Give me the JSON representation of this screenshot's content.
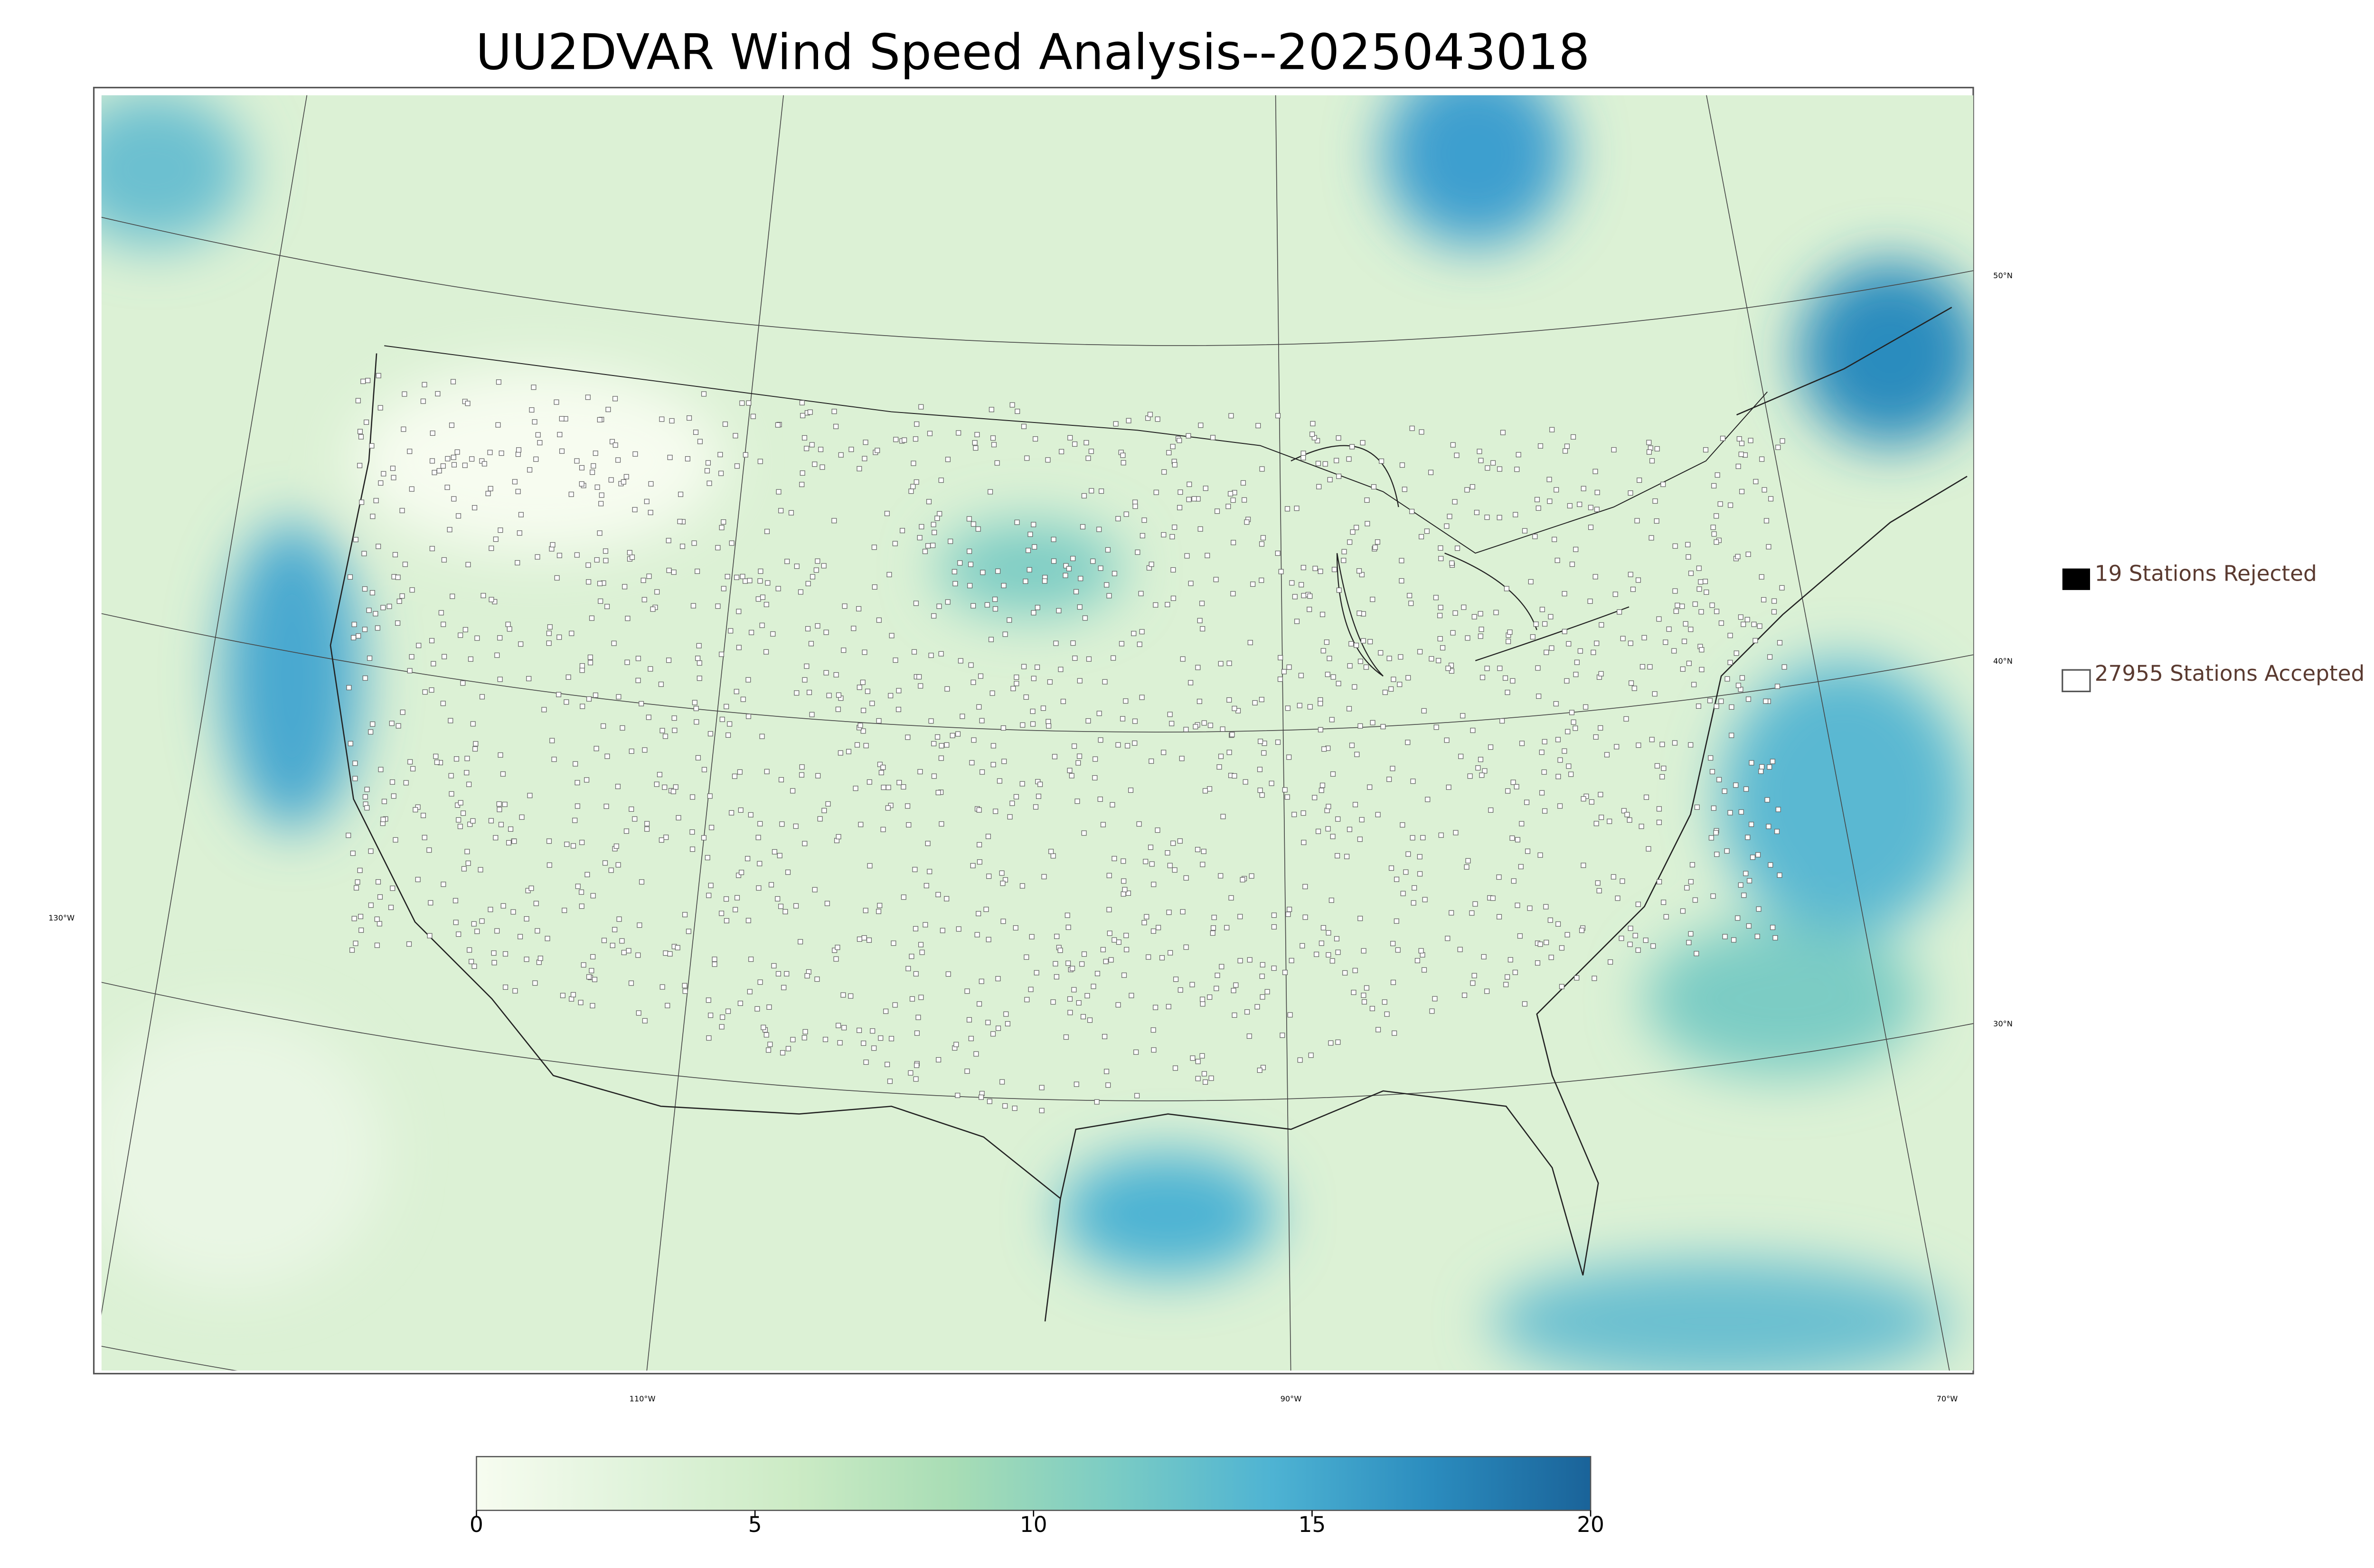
{
  "map": {
    "title": "UU2DVAR Wind Speed Analysis--2025043018",
    "latitude_labels": [
      "50°N",
      "40°N",
      "30°N"
    ],
    "longitude_labels": [
      "130°W",
      "110°W",
      "90°W",
      "70°W"
    ],
    "legend": {
      "rejected": "19 Stations Rejected",
      "accepted": "27955 Stations Accepted"
    },
    "colorbar": {
      "lim": [
        0,
        20
      ],
      "ticks": [
        0,
        5,
        10,
        15,
        20
      ],
      "colors": [
        "#f7fcf0",
        "#e0f3db",
        "#ccebc5",
        "#a8ddb5",
        "#7bccc4",
        "#4eb3d3",
        "#2b8cbe",
        "#1a6399"
      ]
    }
  }
}
